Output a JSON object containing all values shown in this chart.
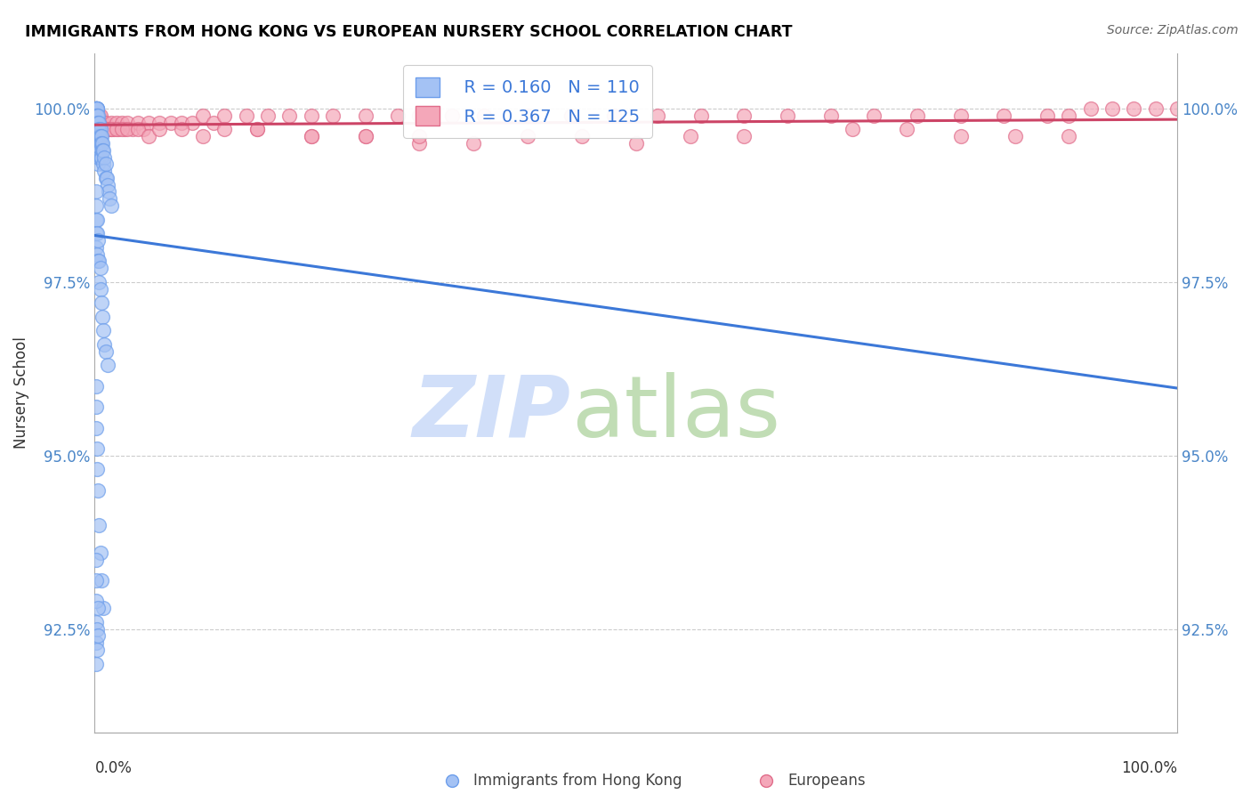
{
  "title": "IMMIGRANTS FROM HONG KONG VS EUROPEAN NURSERY SCHOOL CORRELATION CHART",
  "source": "Source: ZipAtlas.com",
  "ylabel": "Nursery School",
  "ytick_labels": [
    "100.0%",
    "97.5%",
    "95.0%",
    "92.5%"
  ],
  "ytick_values": [
    1.0,
    0.975,
    0.95,
    0.925
  ],
  "xmin": 0.0,
  "xmax": 1.0,
  "ymin": 0.91,
  "ymax": 1.008,
  "legend_r_blue": "R = 0.160",
  "legend_n_blue": "N = 110",
  "legend_r_pink": "R = 0.367",
  "legend_n_pink": "N = 125",
  "legend_label_blue": "Immigrants from Hong Kong",
  "legend_label_pink": "Europeans",
  "blue_color": "#a4c2f4",
  "pink_color": "#f4a7b9",
  "blue_edge_color": "#6d9eeb",
  "pink_edge_color": "#e06c8a",
  "blue_line_color": "#3c78d8",
  "pink_line_color": "#cc4466",
  "watermark_zip_color": "#c9daf8",
  "watermark_atlas_color": "#b6d7a8",
  "grid_color": "#cccccc",
  "title_color": "#000000",
  "source_color": "#666666",
  "tick_color": "#4a86c8",
  "axis_label_color": "#333333",
  "blue_x": [
    0.001,
    0.001,
    0.001,
    0.001,
    0.001,
    0.001,
    0.001,
    0.001,
    0.001,
    0.001,
    0.001,
    0.001,
    0.001,
    0.001,
    0.001,
    0.001,
    0.001,
    0.001,
    0.001,
    0.001,
    0.002,
    0.002,
    0.002,
    0.002,
    0.002,
    0.002,
    0.002,
    0.002,
    0.002,
    0.002,
    0.002,
    0.002,
    0.002,
    0.002,
    0.002,
    0.002,
    0.003,
    0.003,
    0.003,
    0.003,
    0.003,
    0.003,
    0.003,
    0.003,
    0.004,
    0.004,
    0.004,
    0.004,
    0.004,
    0.004,
    0.005,
    0.005,
    0.005,
    0.005,
    0.006,
    0.006,
    0.006,
    0.007,
    0.007,
    0.008,
    0.008,
    0.009,
    0.009,
    0.01,
    0.01,
    0.011,
    0.012,
    0.013,
    0.014,
    0.015,
    0.001,
    0.001,
    0.001,
    0.001,
    0.001,
    0.002,
    0.002,
    0.002,
    0.003,
    0.003,
    0.004,
    0.004,
    0.005,
    0.005,
    0.006,
    0.007,
    0.008,
    0.009,
    0.01,
    0.012,
    0.001,
    0.001,
    0.001,
    0.002,
    0.002,
    0.003,
    0.004,
    0.005,
    0.006,
    0.008,
    0.001,
    0.001,
    0.001,
    0.001,
    0.001,
    0.001,
    0.002,
    0.002,
    0.003,
    0.003
  ],
  "blue_y": [
    1.0,
    1.0,
    1.0,
    1.0,
    1.0,
    1.0,
    1.0,
    1.0,
    1.0,
    1.0,
    0.999,
    0.999,
    0.999,
    0.999,
    0.999,
    0.998,
    0.998,
    0.998,
    0.998,
    0.998,
    1.0,
    1.0,
    1.0,
    1.0,
    0.999,
    0.999,
    0.999,
    0.998,
    0.998,
    0.997,
    0.997,
    0.997,
    0.996,
    0.996,
    0.995,
    0.994,
    0.999,
    0.998,
    0.997,
    0.996,
    0.995,
    0.994,
    0.993,
    0.992,
    0.998,
    0.997,
    0.996,
    0.995,
    0.994,
    0.993,
    0.997,
    0.996,
    0.995,
    0.993,
    0.996,
    0.995,
    0.993,
    0.995,
    0.994,
    0.994,
    0.992,
    0.993,
    0.991,
    0.992,
    0.99,
    0.99,
    0.989,
    0.988,
    0.987,
    0.986,
    0.988,
    0.986,
    0.984,
    0.982,
    0.98,
    0.984,
    0.982,
    0.979,
    0.981,
    0.978,
    0.978,
    0.975,
    0.977,
    0.974,
    0.972,
    0.97,
    0.968,
    0.966,
    0.965,
    0.963,
    0.96,
    0.957,
    0.954,
    0.951,
    0.948,
    0.945,
    0.94,
    0.936,
    0.932,
    0.928,
    0.935,
    0.932,
    0.929,
    0.926,
    0.923,
    0.92,
    0.925,
    0.922,
    0.928,
    0.924
  ],
  "pink_x": [
    0.001,
    0.001,
    0.001,
    0.001,
    0.001,
    0.001,
    0.001,
    0.001,
    0.001,
    0.001,
    0.002,
    0.002,
    0.002,
    0.002,
    0.002,
    0.002,
    0.002,
    0.002,
    0.003,
    0.003,
    0.003,
    0.003,
    0.003,
    0.004,
    0.004,
    0.004,
    0.004,
    0.005,
    0.005,
    0.005,
    0.006,
    0.006,
    0.007,
    0.007,
    0.008,
    0.008,
    0.009,
    0.01,
    0.01,
    0.011,
    0.012,
    0.013,
    0.015,
    0.015,
    0.018,
    0.02,
    0.022,
    0.025,
    0.028,
    0.03,
    0.035,
    0.04,
    0.045,
    0.05,
    0.06,
    0.07,
    0.08,
    0.09,
    0.1,
    0.11,
    0.12,
    0.14,
    0.16,
    0.18,
    0.2,
    0.22,
    0.25,
    0.28,
    0.3,
    0.33,
    0.36,
    0.4,
    0.44,
    0.48,
    0.52,
    0.56,
    0.6,
    0.64,
    0.68,
    0.72,
    0.76,
    0.8,
    0.84,
    0.88,
    0.9,
    0.92,
    0.94,
    0.96,
    0.98,
    1.0,
    0.15,
    0.2,
    0.25,
    0.3,
    0.35,
    0.7,
    0.75,
    0.8,
    0.85,
    0.9,
    0.004,
    0.005,
    0.006,
    0.008,
    0.01,
    0.012,
    0.015,
    0.02,
    0.025,
    0.03,
    0.04,
    0.05,
    0.06,
    0.08,
    0.1,
    0.12,
    0.15,
    0.2,
    0.25,
    0.3,
    0.4,
    0.45,
    0.5,
    0.55,
    0.6
  ],
  "pink_y": [
    0.999,
    0.999,
    0.999,
    0.999,
    0.999,
    0.999,
    0.998,
    0.998,
    0.998,
    0.998,
    0.999,
    0.999,
    0.999,
    0.999,
    0.998,
    0.998,
    0.997,
    0.997,
    0.999,
    0.999,
    0.998,
    0.998,
    0.997,
    0.999,
    0.998,
    0.998,
    0.997,
    0.999,
    0.998,
    0.997,
    0.998,
    0.997,
    0.998,
    0.997,
    0.998,
    0.997,
    0.997,
    0.998,
    0.997,
    0.997,
    0.997,
    0.997,
    0.998,
    0.997,
    0.997,
    0.998,
    0.997,
    0.998,
    0.997,
    0.998,
    0.997,
    0.998,
    0.997,
    0.998,
    0.998,
    0.998,
    0.998,
    0.998,
    0.999,
    0.998,
    0.999,
    0.999,
    0.999,
    0.999,
    0.999,
    0.999,
    0.999,
    0.999,
    0.999,
    0.999,
    0.999,
    0.999,
    0.999,
    0.999,
    0.999,
    0.999,
    0.999,
    0.999,
    0.999,
    0.999,
    0.999,
    0.999,
    0.999,
    0.999,
    0.999,
    1.0,
    1.0,
    1.0,
    1.0,
    1.0,
    0.997,
    0.996,
    0.996,
    0.995,
    0.995,
    0.997,
    0.997,
    0.996,
    0.996,
    0.996,
    0.998,
    0.997,
    0.997,
    0.997,
    0.997,
    0.997,
    0.997,
    0.997,
    0.997,
    0.997,
    0.997,
    0.996,
    0.997,
    0.997,
    0.996,
    0.997,
    0.997,
    0.996,
    0.996,
    0.996,
    0.996,
    0.996,
    0.995,
    0.996,
    0.996
  ]
}
